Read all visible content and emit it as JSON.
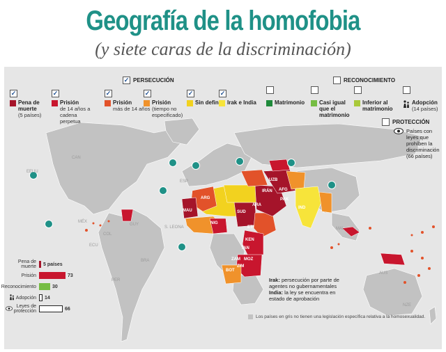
{
  "title": "Geografía de la homofobia",
  "subtitle": "(y siete caras de la discriminación)",
  "colors": {
    "teal": "#1f9187",
    "dark_red": "#a5142a",
    "red": "#c8162e",
    "orange_red": "#e2522a",
    "orange": "#f0922b",
    "yellow": "#f2d21f",
    "yellow2": "#f7e43a",
    "dark_green": "#1f8a3b",
    "green": "#76bd43",
    "olive": "#a9c93a",
    "gray_land": "#c2c2c2",
    "panel": "#e6e6e6"
  },
  "sections": {
    "persecucion": {
      "label": "PERSECUCIÓN",
      "checked": true
    },
    "reconocimiento": {
      "label": "RECONOCIMIENTO",
      "checked": false
    },
    "proteccion": {
      "label": "PROTECCIÓN",
      "checked": false
    }
  },
  "legend": [
    {
      "title": "Pena de muerte",
      "sub": "(5 países)",
      "color": "#a5142a",
      "checked": true
    },
    {
      "title": "Prisión",
      "sub": "de 14 años a cadena perpetua",
      "color": "#c8162e",
      "checked": true
    },
    {
      "title": "Prisión",
      "sub": "más de 14 años",
      "color": "#e2522a",
      "checked": true
    },
    {
      "title": "Prisión",
      "sub": "(tiempo no especificado)",
      "color": "#f0922b",
      "checked": true
    },
    {
      "title": "Sin definir",
      "sub": "",
      "color": "#f2d21f",
      "checked": true
    },
    {
      "title": "Irak e India",
      "sub": "",
      "color": "#f7e43a",
      "checked": true
    },
    {
      "title": "Matrimonio",
      "sub": "",
      "color": "#1f8a3b",
      "checked": false
    },
    {
      "title": "Casi igual que el matrimonio",
      "sub": "",
      "color": "#76bd43",
      "checked": false
    },
    {
      "title": "Inferior al matrimonio",
      "sub": "",
      "color": "#a9c93a",
      "checked": false
    },
    {
      "title": "Adopción",
      "sub": "(14 países)",
      "icon": "adoption-icon",
      "checked": false
    }
  ],
  "proteccion_legend": {
    "text": "Países con leyes que prohíben la discriminación (66 países)",
    "icon": "eye-icon"
  },
  "country_labels": [
    "CAN",
    "EEUU",
    "MÉX",
    "GUY",
    "COL",
    "ECU",
    "BRA",
    "PER",
    "BOL",
    "ARG",
    "CHI",
    "URU",
    "GRO",
    "ISL",
    "NOR",
    "SUE",
    "FIN",
    "RUS",
    "ESP",
    "ARG",
    "MAU",
    "NIG",
    "MAL",
    "S. LEONA",
    "GAN",
    "GHA",
    "SUD",
    "ETI",
    "KEN",
    "ARA",
    "IRÁN",
    "UZB",
    "AFG",
    "PAK",
    "IND",
    "BAN",
    "CHN",
    "MON",
    "KAZ",
    "TAN",
    "ZAM",
    "MOZ",
    "ZIM",
    "BOT",
    "SAF",
    "RUS",
    "JAP",
    "MAL",
    "AUS",
    "NZE",
    "IRAN"
  ],
  "bars": [
    {
      "label": "Pena de muerte",
      "value": "5 países",
      "color": "#a5142a",
      "width": 3
    },
    {
      "label": "Prisión",
      "value": "73",
      "color": "#c8162e",
      "width": 38
    },
    {
      "label": "Reconocimiento",
      "value": "30",
      "color": "#76bd43",
      "width": 16
    },
    {
      "label": "Adopción",
      "value": "14",
      "color": "#ffffff",
      "width": 5
    },
    {
      "label": "Leyes de protección",
      "value": "66",
      "color": "#ffffff",
      "width": 34
    }
  ],
  "notes": {
    "irak_bold": "Irak:",
    "irak_text": "persecución por parte de agentes no gubernamentales",
    "india_bold": "India:",
    "india_text": "la ley se encuentra en estado de aprobación"
  },
  "footnote": "Los países en gris no tienen una legislación específica relativa a la homosexualidad."
}
